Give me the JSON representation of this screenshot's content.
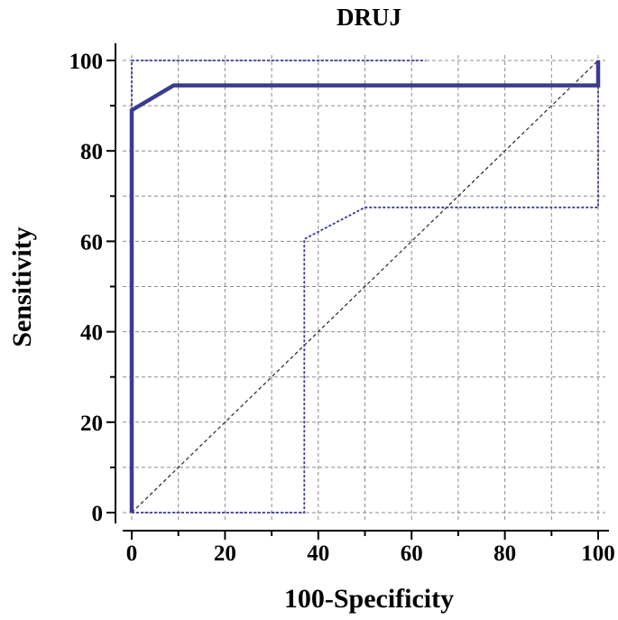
{
  "chart_data": {
    "type": "line",
    "title": "DRUJ",
    "xlabel": "100-Specificity",
    "ylabel": "Sensitivity",
    "xlim": [
      0,
      100
    ],
    "ylim": [
      0,
      100
    ],
    "x_ticks": [
      "0",
      "20",
      "40",
      "60",
      "80",
      "100"
    ],
    "y_ticks": [
      "0",
      "20",
      "40",
      "60",
      "80",
      "100"
    ],
    "grid": true,
    "series": [
      {
        "role": "roc-curve",
        "style": "solid-thick",
        "color": "#3a3d8f",
        "points": [
          [
            0,
            0
          ],
          [
            0,
            89
          ],
          [
            9,
            94.5
          ],
          [
            100,
            94.5
          ],
          [
            100,
            100
          ]
        ]
      },
      {
        "role": "upper-confidence-bound",
        "style": "dotted",
        "color": "#3a3d8f",
        "points": [
          [
            0,
            89
          ],
          [
            0,
            100
          ],
          [
            63,
            100
          ]
        ]
      },
      {
        "role": "lower-confidence-bound",
        "style": "dotted",
        "color": "#3a3d8f",
        "points": [
          [
            0,
            0
          ],
          [
            37,
            0
          ],
          [
            37,
            60.5
          ],
          [
            50,
            67.5
          ],
          [
            100,
            67.5
          ],
          [
            100,
            100
          ]
        ]
      },
      {
        "role": "reference-diagonal",
        "style": "dashed-thin",
        "color": "#333333",
        "points": [
          [
            0,
            0
          ],
          [
            100,
            100
          ]
        ]
      }
    ]
  }
}
